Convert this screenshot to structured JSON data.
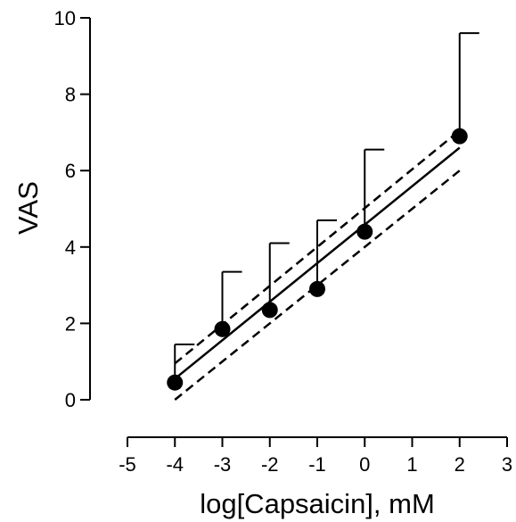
{
  "chart_data": {
    "type": "scatter",
    "title": "",
    "xlabel": "log[Capsaicin], mM",
    "ylabel": "VAS",
    "xlim": [
      -5,
      3
    ],
    "ylim": [
      0,
      10
    ],
    "xticks": [
      -5,
      -4,
      -3,
      -2,
      -1,
      0,
      1,
      2,
      3
    ],
    "yticks": [
      0,
      2,
      4,
      6,
      8,
      10
    ],
    "grid": false,
    "legend": "none",
    "series": [
      {
        "x": [
          -4,
          -3,
          -2,
          -1,
          0,
          2
        ],
        "y": [
          0.45,
          1.85,
          2.35,
          2.9,
          4.4,
          6.9
        ],
        "error_upper": [
          1.45,
          3.35,
          4.1,
          4.7,
          6.55,
          9.6
        ]
      }
    ],
    "fit_line": {
      "x": [
        -4,
        2
      ],
      "y": [
        0.55,
        6.6
      ]
    },
    "confidence_band": {
      "upper": {
        "x": [
          -4,
          2
        ],
        "y": [
          0.95,
          7.05
        ]
      },
      "lower": {
        "x": [
          -4,
          2
        ],
        "y": [
          0.0,
          6.0
        ]
      }
    },
    "colors": {
      "points": "#000000",
      "lines": "#000000"
    }
  }
}
